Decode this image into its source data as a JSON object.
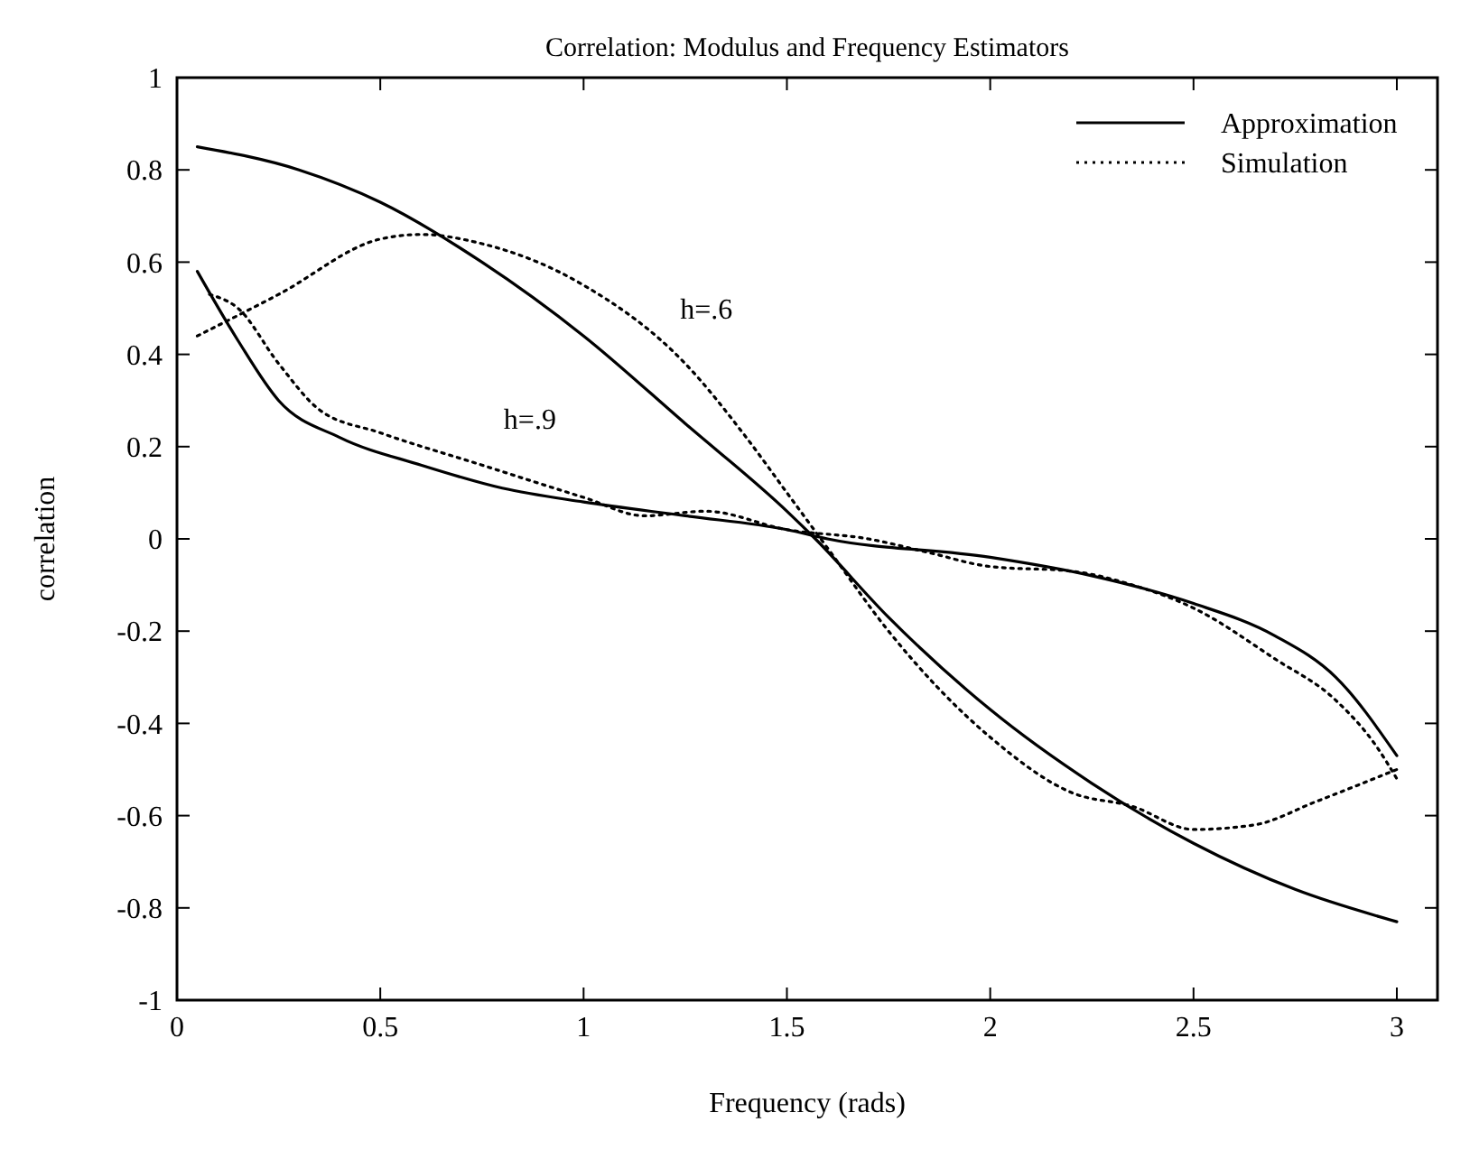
{
  "chart_data": {
    "type": "line",
    "title": "Correlation: Modulus and Frequency Estimators",
    "xlabel": "Frequency (rads)",
    "ylabel": "correlation",
    "xlim": [
      0,
      3.1
    ],
    "xticks": [
      0,
      0.5,
      1,
      1.5,
      2,
      2.5,
      3
    ],
    "ylim": [
      -1,
      1
    ],
    "yticks": [
      -1,
      -0.8,
      -0.6,
      -0.4,
      -0.2,
      0,
      0.2,
      0.4,
      0.6,
      0.8,
      1
    ],
    "grid": false,
    "legend": "top right",
    "marker": "none",
    "annotations": [
      "h=.6",
      "h=.9"
    ],
    "series": [
      {
        "name": "Approximation",
        "color": "#000000",
        "line_style": "solid",
        "x": [
          0.05,
          0.3,
          0.5,
          0.75,
          1.0,
          1.25,
          1.5,
          1.57,
          1.75,
          2.0,
          2.25,
          2.5,
          2.75,
          3.0
        ],
        "values": [
          0.85,
          0.8,
          0.73,
          0.6,
          0.44,
          0.25,
          0.06,
          0,
          -0.17,
          -0.37,
          -0.53,
          -0.66,
          -0.76,
          -0.83
        ]
      },
      {
        "name": "Simulation",
        "color": "#000000",
        "line_style": "dotted",
        "x": [
          0.05,
          0.25,
          0.5,
          0.6,
          0.75,
          1.0,
          1.25,
          1.4,
          1.5,
          1.6,
          1.75,
          2.0,
          2.2,
          2.35,
          2.5,
          2.65,
          2.8,
          3.0
        ],
        "values": [
          0.44,
          0.53,
          0.65,
          0.66,
          0.64,
          0.55,
          0.38,
          0.22,
          0.1,
          -0.02,
          -0.2,
          -0.43,
          -0.55,
          -0.58,
          -0.63,
          -0.62,
          -0.57,
          -0.5
        ]
      },
      {
        "color": "#000000",
        "line_style": "solid",
        "x": [
          0.05,
          0.15,
          0.25,
          0.4,
          0.6,
          0.8,
          1.0,
          1.25,
          1.5,
          1.6,
          2.0,
          2.25,
          2.5,
          2.7,
          2.85,
          3.0
        ],
        "values": [
          0.58,
          0.43,
          0.3,
          0.22,
          0.16,
          0.11,
          0.08,
          0.05,
          0.02,
          0,
          -0.04,
          -0.08,
          -0.14,
          -0.21,
          -0.3,
          -0.47
        ]
      },
      {
        "color": "#000000",
        "line_style": "dotted",
        "x": [
          0.08,
          0.15,
          0.25,
          0.35,
          0.5,
          0.75,
          1.0,
          1.15,
          1.3,
          1.5,
          1.7,
          1.85,
          2.0,
          2.2,
          2.35,
          2.5,
          2.7,
          2.85,
          2.95,
          3.0
        ],
        "values": [
          0.53,
          0.5,
          0.38,
          0.28,
          0.23,
          0.16,
          0.09,
          0.05,
          0.06,
          0.02,
          0,
          -0.03,
          -0.06,
          -0.07,
          -0.1,
          -0.15,
          -0.26,
          -0.35,
          -0.45,
          -0.52
        ]
      }
    ]
  }
}
